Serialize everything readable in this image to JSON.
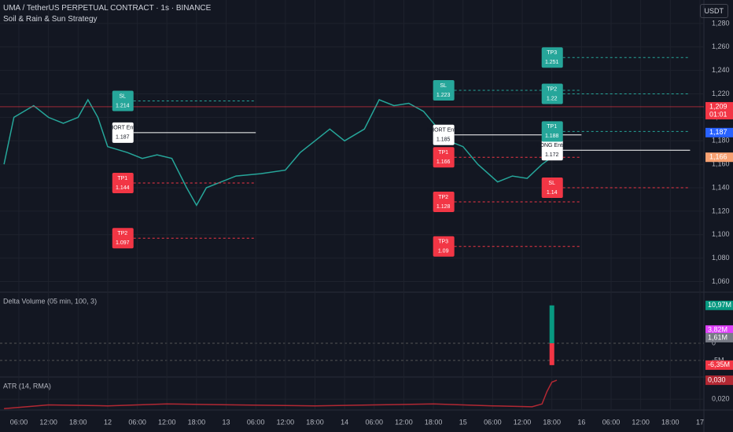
{
  "header": {
    "symbol": "UMA / TetherUS PERPETUAL CONTRACT · 1s · BINANCE",
    "strategy": "Soil & Rain & Sun Strategy",
    "currency": "USDT"
  },
  "chart_data": [
    {
      "type": "line",
      "color": "#26a69a",
      "x": [
        -3,
        -1,
        3,
        6,
        9,
        12,
        14,
        16,
        18,
        22,
        25,
        28,
        31,
        34,
        36,
        38,
        41,
        44,
        49,
        54,
        57,
        60,
        63,
        66,
        70,
        73,
        76,
        79,
        82,
        85,
        87,
        90,
        93,
        97,
        100,
        103,
        106,
        108
      ],
      "values": [
        1.16,
        1.2,
        1.21,
        1.2,
        1.195,
        1.2,
        1.215,
        1.2,
        1.175,
        1.17,
        1.165,
        1.168,
        1.165,
        1.14,
        1.125,
        1.14,
        1.145,
        1.15,
        1.152,
        1.155,
        1.17,
        1.18,
        1.19,
        1.18,
        1.19,
        1.215,
        1.21,
        1.212,
        1.205,
        1.19,
        1.18,
        1.175,
        1.16,
        1.145,
        1.15,
        1.148,
        1.16,
        1.166
      ],
      "xlim": [
        -3.82,
        138.8
      ],
      "ylim": [
        1.051,
        1.3
      ],
      "yticks": [
        {
          "value": 1.06,
          "label": "1,060"
        },
        {
          "value": 1.08,
          "label": "1,080"
        },
        {
          "value": 1.1,
          "label": "1,100"
        },
        {
          "value": 1.12,
          "label": "1,120"
        },
        {
          "value": 1.14,
          "label": "1,140"
        },
        {
          "value": 1.16,
          "label": "1,160"
        },
        {
          "value": 1.18,
          "label": "1,180"
        },
        {
          "value": 1.2,
          "label": "1,200"
        },
        {
          "value": 1.22,
          "label": "1,220"
        },
        {
          "value": 1.24,
          "label": "1,240"
        },
        {
          "value": 1.26,
          "label": "1,260"
        },
        {
          "value": 1.28,
          "label": "1,280"
        }
      ],
      "categories": [
        "06:00",
        "12:00",
        "18:00",
        "12",
        "06:00",
        "12:00",
        "18:00",
        "13",
        "06:00",
        "12:00",
        "18:00",
        "14",
        "06:00",
        "12:00",
        "18:00",
        "15",
        "06:00",
        "12:00",
        "18:00",
        "16",
        "06:00",
        "12:00",
        "18:00",
        "17"
      ],
      "price_labels": [
        {
          "value": 1.209,
          "label": "1,209",
          "sub": "01:01",
          "color": "#f23645"
        },
        {
          "value": 1.187,
          "label": "1,187",
          "color": "#2962ff"
        },
        {
          "value": 1.166,
          "label": "1,166",
          "color": "#f7a172"
        }
      ],
      "signal_groups": [
        {
          "x": 21,
          "x_end": 48,
          "signals": [
            {
              "label": "SHORT Entry",
              "price": 1.187,
              "color": "#ffffff",
              "entry": true
            },
            {
              "label": "SL",
              "price": 1.214,
              "color": "#26a69a"
            },
            {
              "label": "TP1",
              "price": 1.144,
              "color": "#f23645"
            },
            {
              "label": "TP2",
              "price": 1.097,
              "color": "#f23645"
            }
          ]
        },
        {
          "x": 86,
          "x_end": 114,
          "signals": [
            {
              "label": "SHORT Entry",
              "price": 1.185,
              "color": "#ffffff",
              "entry": true
            },
            {
              "label": "SL",
              "price": 1.223,
              "color": "#26a69a"
            },
            {
              "label": "TP1",
              "price": 1.166,
              "color": "#f23645"
            },
            {
              "label": "TP2",
              "price": 1.128,
              "color": "#f23645"
            },
            {
              "label": "TP3",
              "price": 1.09,
              "color": "#f23645"
            }
          ]
        },
        {
          "x": 108,
          "x_end": 136,
          "signals": [
            {
              "label": "LONG Entry",
              "price": 1.172,
              "color": "#ffffff",
              "entry": true
            },
            {
              "label": "SL",
              "price": 1.14,
              "color": "#f23645"
            },
            {
              "label": "TP1",
              "price": 1.188,
              "color": "#26a69a"
            },
            {
              "label": "TP2",
              "price": 1.22,
              "color": "#26a69a"
            },
            {
              "label": "TP3",
              "price": 1.251,
              "color": "#26a69a"
            }
          ]
        }
      ]
    },
    {
      "type": "bar",
      "title": "Delta Volume (05 min, 100, 3)",
      "x": [
        108,
        108
      ],
      "values": [
        10.97,
        -6.35
      ],
      "value_labels": [
        "10,97M",
        "-6,35M"
      ],
      "colors": [
        "#089981",
        "#f23645"
      ],
      "ylim": [
        -9.8,
        14.8
      ],
      "yticks": [
        0,
        {
          "value": -5,
          "label": "-5M"
        }
      ],
      "extra_labels": [
        {
          "value": 3.82,
          "label": "3,82M",
          "color": "#e040fb"
        },
        {
          "value": 1.61,
          "label": "1,61M",
          "color": "#787b86"
        }
      ]
    },
    {
      "type": "line",
      "title": "ATR (14, RMA)",
      "color": "#b22833",
      "x": [
        -3,
        6,
        18,
        30,
        44,
        60,
        72,
        84,
        96,
        104,
        106,
        107,
        108,
        109
      ],
      "values": [
        0.015,
        0.017,
        0.0165,
        0.0175,
        0.017,
        0.0165,
        0.017,
        0.0175,
        0.0165,
        0.016,
        0.0175,
        0.024,
        0.029,
        0.03
      ],
      "value_labels_last": "0,030",
      "ylim": [
        0.0143,
        0.0317
      ],
      "yticks": [
        {
          "value": 0.02,
          "label": "0,020"
        }
      ]
    }
  ]
}
